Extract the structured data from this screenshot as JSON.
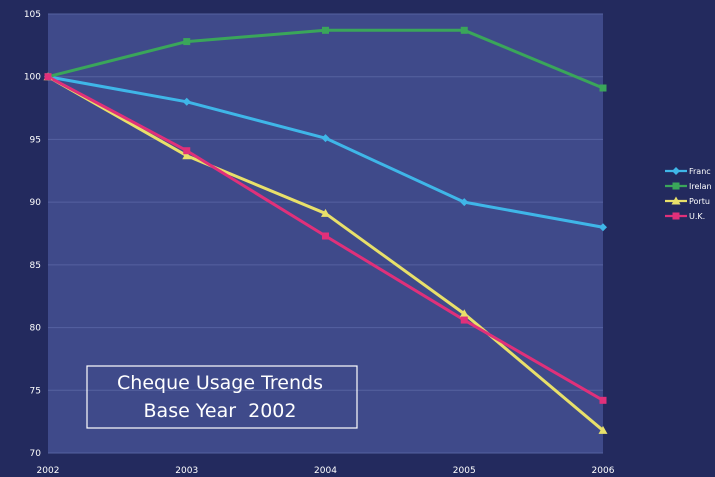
{
  "chart_data": {
    "type": "line",
    "title_lines": [
      "Cheque Usage Trends",
      "Base Year  2002"
    ],
    "x": [
      "2002",
      "2003",
      "2004",
      "2005",
      "2006"
    ],
    "ylim": [
      70,
      105
    ],
    "yticks": [
      "70",
      "75",
      "80",
      "85",
      "90",
      "95",
      "100",
      "105"
    ],
    "grid": true,
    "legend_position": "right",
    "series": [
      {
        "name": "Franc",
        "values": [
          100,
          98,
          95.1,
          90,
          88
        ],
        "color": "#3fb6e8",
        "marker": "diamond"
      },
      {
        "name": "Irelan",
        "values": [
          100,
          102.8,
          103.7,
          103.7,
          99.1
        ],
        "color": "#3aa65a",
        "marker": "square"
      },
      {
        "name": "Portu",
        "values": [
          100,
          93.7,
          89.1,
          81.1,
          71.8
        ],
        "color": "#e8e06a",
        "marker": "triangle"
      },
      {
        "name": "U.K.",
        "values": [
          100,
          94.1,
          87.3,
          80.6,
          74.2
        ],
        "color": "#e0307a",
        "marker": "square"
      }
    ]
  },
  "colors": {
    "background": "#232a5e",
    "plot_area": "#3f4a8a",
    "grid": "#5662a0"
  }
}
